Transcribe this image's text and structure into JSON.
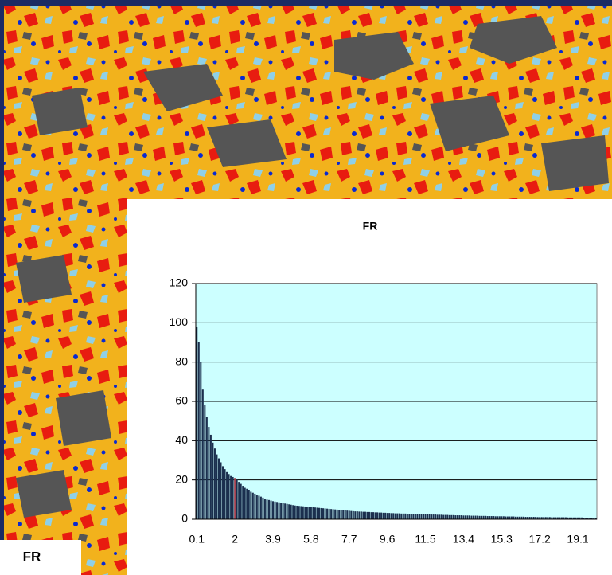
{
  "caption": "FR",
  "chart_data": {
    "type": "bar",
    "title": "FR",
    "categories": [
      "0.1",
      null,
      null,
      null,
      null,
      null,
      null,
      null,
      null,
      null,
      null,
      null,
      null,
      null,
      null,
      null,
      null,
      null,
      null,
      "2",
      null,
      null,
      null,
      null,
      null,
      null,
      null,
      null,
      null,
      null,
      null,
      null,
      null,
      null,
      null,
      null,
      null,
      null,
      "3.9",
      null,
      null,
      null,
      null,
      null,
      null,
      null,
      null,
      null,
      null,
      null,
      null,
      null,
      null,
      null,
      null,
      null,
      null,
      "5.8",
      null,
      null,
      null,
      null,
      null,
      null,
      null,
      null,
      null,
      null,
      null,
      null,
      null,
      null,
      null,
      null,
      null,
      null,
      "7.7",
      null,
      null,
      null,
      null,
      null,
      null,
      null,
      null,
      null,
      null,
      null,
      null,
      null,
      null,
      null,
      null,
      null,
      null,
      "9.6",
      null,
      null,
      null,
      null,
      null,
      null,
      null,
      null,
      null,
      null,
      null,
      null,
      null,
      null,
      null,
      null,
      null,
      null,
      "11.5",
      null,
      null,
      null,
      null,
      null,
      null,
      null,
      null,
      null,
      null,
      null,
      null,
      null,
      null,
      null,
      null,
      null,
      null,
      "13.4",
      null,
      null,
      null,
      null,
      null,
      null,
      null,
      null,
      null,
      null,
      null,
      null,
      null,
      null,
      null,
      null,
      null,
      null,
      "15.3",
      null,
      null,
      null,
      null,
      null,
      null,
      null,
      null,
      null,
      null,
      null,
      null,
      null,
      null,
      null,
      null,
      null,
      null,
      "17.2",
      null,
      null,
      null,
      null,
      null,
      null,
      null,
      null,
      null,
      null,
      null,
      null,
      null,
      null,
      null,
      null,
      null,
      null,
      "19.1",
      null,
      null,
      null,
      null,
      null,
      null,
      null,
      null,
      null
    ],
    "values": [
      98,
      90,
      80,
      66,
      58,
      52,
      47,
      43,
      39,
      36,
      33,
      31,
      29,
      27,
      25.5,
      24,
      23,
      22,
      21.5,
      21,
      20,
      19,
      18,
      17,
      16,
      15.5,
      15,
      14,
      13.5,
      13,
      12.5,
      12,
      11.5,
      11,
      10.5,
      10,
      9.8,
      9.5,
      9.2,
      9,
      8.8,
      8.6,
      8.4,
      8.2,
      8,
      7.8,
      7.6,
      7.4,
      7.2,
      7,
      6.9,
      6.8,
      6.7,
      6.6,
      6.5,
      6.4,
      6.3,
      6.2,
      6.1,
      6,
      5.9,
      5.8,
      5.7,
      5.6,
      5.5,
      5.4,
      5.3,
      5.2,
      5.1,
      5,
      4.9,
      4.8,
      4.7,
      4.6,
      4.5,
      4.4,
      4.3,
      4.2,
      4.1,
      4,
      4,
      3.9,
      3.9,
      3.8,
      3.8,
      3.7,
      3.7,
      3.6,
      3.6,
      3.5,
      3.5,
      3.4,
      3.4,
      3.3,
      3.3,
      3.2,
      3.2,
      3.1,
      3.1,
      3,
      3,
      3,
      2.9,
      2.9,
      2.9,
      2.8,
      2.8,
      2.8,
      2.7,
      2.7,
      2.7,
      2.6,
      2.6,
      2.6,
      2.5,
      2.5,
      2.5,
      2.4,
      2.4,
      2.4,
      2.3,
      2.3,
      2.3,
      2.2,
      2.2,
      2.2,
      2.1,
      2.1,
      2.1,
      2,
      2,
      2,
      2,
      1.9,
      1.9,
      1.9,
      1.9,
      1.8,
      1.8,
      1.8,
      1.8,
      1.7,
      1.7,
      1.7,
      1.7,
      1.6,
      1.6,
      1.6,
      1.6,
      1.5,
      1.5,
      1.5,
      1.5,
      1.5,
      1.4,
      1.4,
      1.4,
      1.4,
      1.4,
      1.3,
      1.3,
      1.3,
      1.3,
      1.3,
      1.2,
      1.2,
      1.2,
      1.2,
      1.2,
      1.2,
      1.1,
      1.1,
      1.1,
      1.1,
      1.1,
      1.1,
      1.1,
      1,
      1,
      1,
      1,
      1,
      1,
      1,
      1,
      0.9,
      0.9,
      0.9,
      0.9,
      0.9,
      0.9,
      0.9,
      0.9,
      0.8,
      0.8,
      0.8,
      0.8,
      0.8,
      0.8,
      0.8
    ],
    "color": "#1b2f4e",
    "highlight": {
      "category_index": 19,
      "color": "#a0404f"
    },
    "background": "#ccffff",
    "ylim": [
      0,
      120
    ],
    "yticks": [
      0,
      20,
      40,
      60,
      80,
      100,
      120
    ],
    "grid": true
  }
}
